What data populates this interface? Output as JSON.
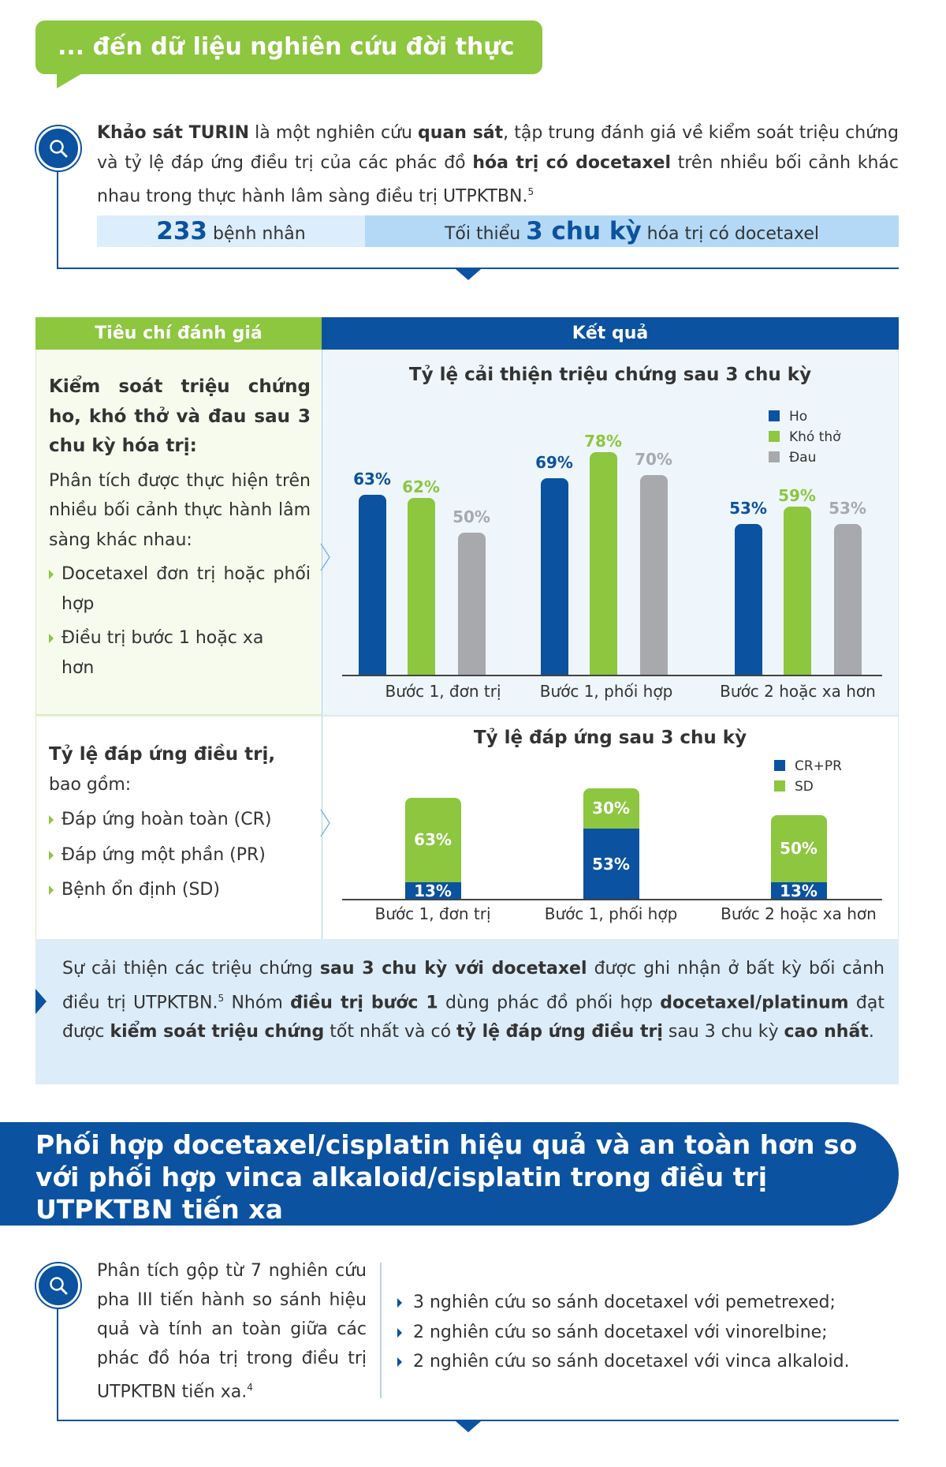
{
  "header": {
    "title": "... đến dữ liệu nghiên cứu đời thực"
  },
  "intro": {
    "icon": "search-icon",
    "segments": [
      {
        "t": "Khảo sát TURIN",
        "b": true
      },
      {
        "t": " là một nghiên cứu ",
        "b": false
      },
      {
        "t": "quan sát",
        "b": true
      },
      {
        "t": ", tập trung đánh giá về kiểm soát triệu chứng và tỷ lệ đáp ứng điều trị của các phác đồ ",
        "b": false
      },
      {
        "t": "hóa trị có docetaxel",
        "b": true
      },
      {
        "t": " trên nhiều bối cảnh khác nhau trong thực hành lâm sàng điều trị UTPKTBN.",
        "b": false
      },
      {
        "t": "5",
        "sup": true
      }
    ],
    "stat_patients_value": "233",
    "stat_patients_label": "bệnh nhân",
    "stat_cycles_prefix": "Tối thiểu",
    "stat_cycles_value": "3 chu kỳ",
    "stat_cycles_suffix": "hóa trị có docetaxel"
  },
  "table": {
    "col_criteria": "Tiêu chí đánh giá",
    "col_results": "Kết quả",
    "row1": {
      "heading": "Kiểm soát triệu chứng ho, khó thở và đau sau 3 chu kỳ hóa trị:",
      "body": "Phân tích được thực hiện trên nhiều bối cảnh thực hành lâm sàng khác nhau:",
      "bullets": [
        "Docetaxel đơn trị hoặc phối hợp",
        "Điều trị bước 1 hoặc xa hơn"
      ]
    },
    "row2": {
      "heading": "Tỷ lệ đáp ứng điều trị,",
      "body": "bao gồm:",
      "bullets": [
        "Đáp ứng hoàn toàn (CR)",
        "Đáp ứng một phần (PR)",
        "Bệnh ổn định (SD)"
      ]
    }
  },
  "chart_data": [
    {
      "type": "bar",
      "title": "Tỷ lệ cải thiện triệu chứng sau 3 chu kỳ",
      "categories": [
        "Bước 1, đơn trị",
        "Bước 1, phối hợp",
        "Bước 2 hoặc xa hơn"
      ],
      "series": [
        {
          "name": "Ho",
          "color": "#0b52a0",
          "values": [
            63,
            69,
            53
          ],
          "labels": [
            "63%",
            "69%",
            "53%"
          ]
        },
        {
          "name": "Khó thở",
          "color": "#8dc63f",
          "values": [
            62,
            78,
            59
          ],
          "labels": [
            "62%",
            "78%",
            "59%"
          ]
        },
        {
          "name": "Đau",
          "color": "#a7a9ac",
          "values": [
            50,
            70,
            53
          ],
          "labels": [
            "50%",
            "70%",
            "53%"
          ]
        }
      ],
      "legend": "top-right",
      "unit": "%"
    },
    {
      "type": "bar",
      "stacked": true,
      "title": "Tỷ lệ đáp ứng sau 3 chu kỳ",
      "categories": [
        "Bước 1, đơn trị",
        "Bước 1, phối hợp",
        "Bước 2 hoặc xa hơn"
      ],
      "series": [
        {
          "name": "CR+PR",
          "color": "#0b52a0",
          "values": [
            13,
            53,
            13
          ],
          "labels": [
            "13%",
            "53%",
            "13%"
          ]
        },
        {
          "name": "SD",
          "color": "#8dc63f",
          "values": [
            63,
            30,
            50
          ],
          "labels": [
            "63%",
            "30%",
            "50%"
          ]
        }
      ],
      "legend": "top-right",
      "unit": "%"
    }
  ],
  "conclusion": {
    "segments": [
      {
        "t": "Sự cải thiện các triệu chứng ",
        "b": false
      },
      {
        "t": "sau 3 chu kỳ với docetaxel",
        "b": true
      },
      {
        "t": " được ghi nhận ở bất kỳ bối cảnh điều trị UTPKTBN.",
        "b": false
      },
      {
        "t": "5",
        "sup": true
      },
      {
        "t": " Nhóm ",
        "b": false
      },
      {
        "t": "điều trị bước 1",
        "b": true
      },
      {
        "t": " dùng phác đồ phối hợp ",
        "b": false
      },
      {
        "t": "docetaxel/platinum",
        "b": true
      },
      {
        "t": " đạt được ",
        "b": false
      },
      {
        "t": "kiểm soát triệu chứng",
        "b": true
      },
      {
        "t": " tốt nhất và có ",
        "b": false
      },
      {
        "t": "tỷ lệ đáp ứng điều trị",
        "b": true
      },
      {
        "t": " sau 3 chu kỳ ",
        "b": false
      },
      {
        "t": "cao nhất",
        "b": true
      },
      {
        "t": ".",
        "b": false
      }
    ]
  },
  "banner": {
    "title": "Phối hợp docetaxel/cisplatin hiệu quả và an toàn hơn so với phối hợp vinca alkaloid/cisplatin trong điều trị UTPKTBN tiến xa"
  },
  "meta_analysis": {
    "icon": "search-icon",
    "segments": [
      {
        "t": "Phân tích gộp từ 7 nghiên cứu pha III tiến hành so sánh hiệu quả và tính an toàn giữa các phác đồ hóa trị trong điều trị UTPKTBN tiến xa.",
        "b": false
      },
      {
        "t": "4",
        "sup": true
      }
    ],
    "bullets": [
      "3 nghiên cứu so sánh docetaxel với pemetrexed;",
      "2 nghiên cứu so sánh docetaxel với vinorelbine;",
      "2 nghiên cứu so sánh docetaxel với vinca alkaloid."
    ]
  }
}
